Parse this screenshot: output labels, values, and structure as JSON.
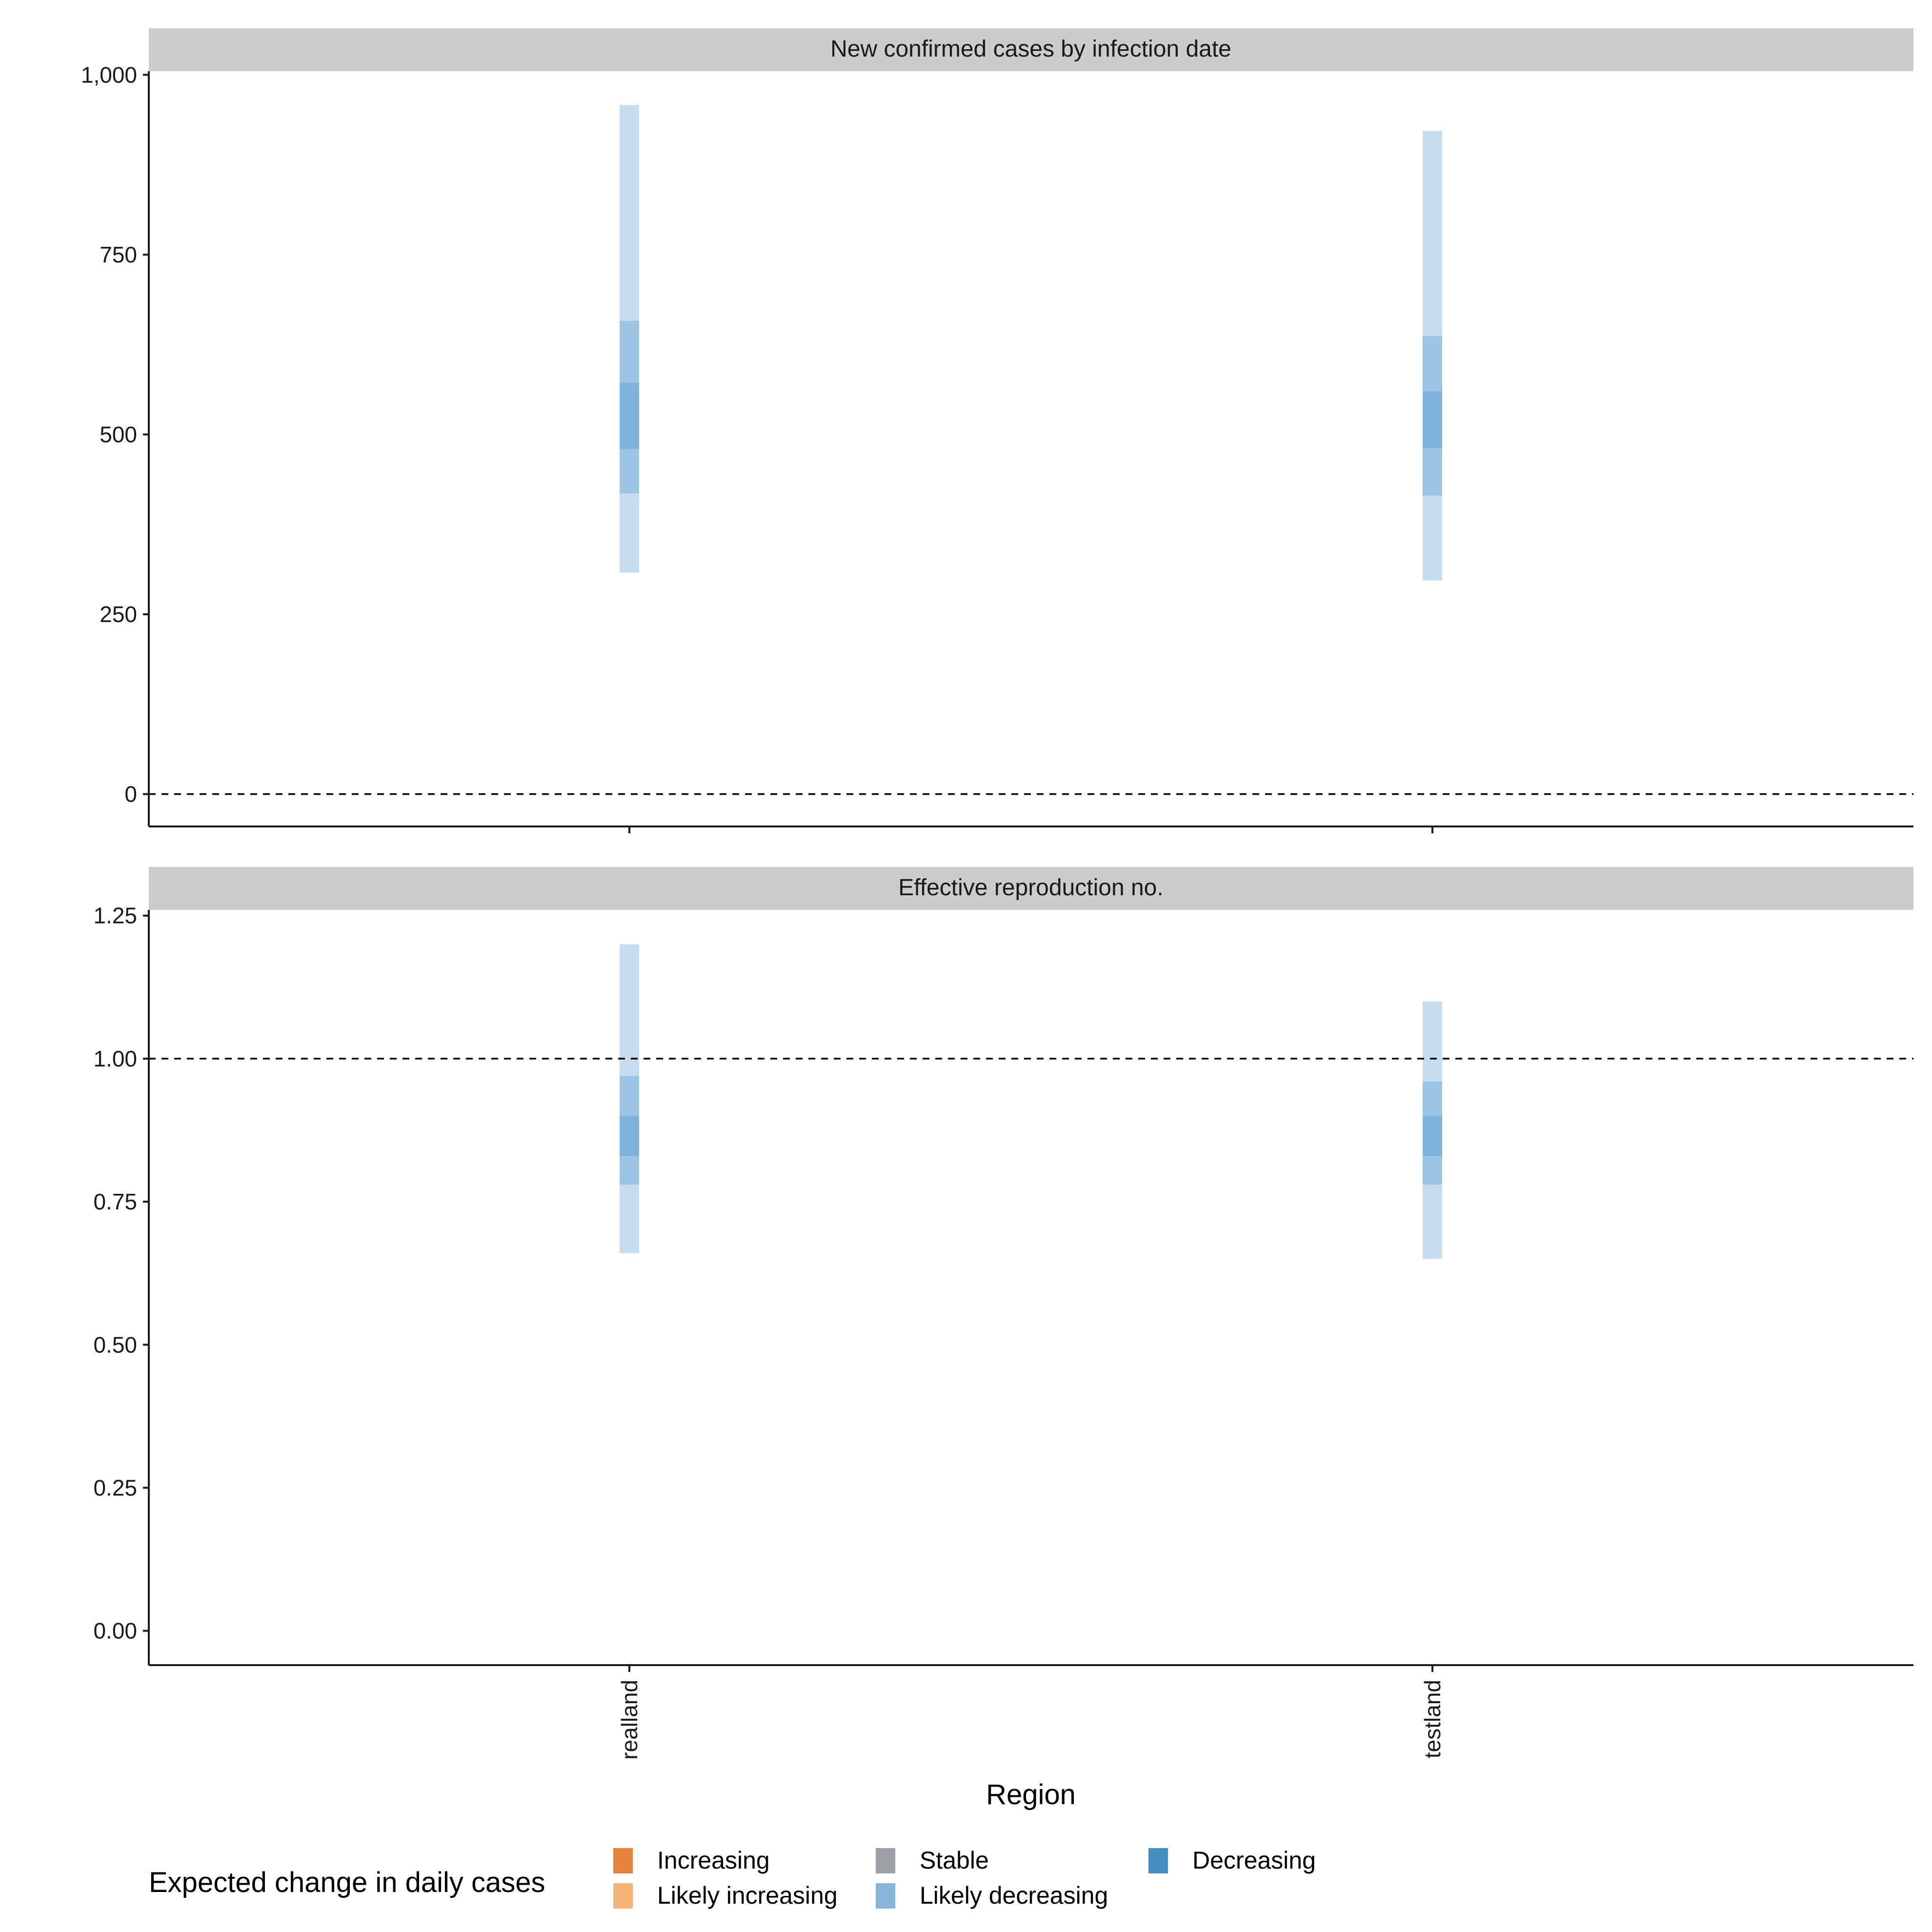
{
  "chart_data": [
    {
      "type": "range-interval",
      "title": "New confirmed cases by infection date",
      "xlabel": "Region",
      "ylabel": "",
      "categories": [
        "realland",
        "testland"
      ],
      "ylim": [
        -45,
        1005
      ],
      "yticks": [
        0,
        250,
        500,
        750,
        1000
      ],
      "ytick_labels": [
        "0",
        "250",
        "500",
        "750",
        "1,000"
      ],
      "reference_line": 0,
      "series": [
        {
          "region": "realland",
          "category": "Likely decreasing",
          "intervals": [
            [
              308,
              958
            ],
            [
              418,
              658
            ],
            [
              480,
              572
            ]
          ]
        },
        {
          "region": "testland",
          "category": "Likely decreasing",
          "intervals": [
            [
              297,
              922
            ],
            [
              415,
              637
            ],
            [
              481,
              560
            ]
          ]
        }
      ]
    },
    {
      "type": "range-interval",
      "title": "Effective reproduction no.",
      "xlabel": "Region",
      "ylabel": "",
      "categories": [
        "realland",
        "testland"
      ],
      "ylim": [
        -0.06,
        1.26
      ],
      "yticks": [
        0,
        0.25,
        0.5,
        0.75,
        1.0,
        1.25
      ],
      "ytick_labels": [
        "0.00",
        "0.25",
        "0.50",
        "0.75",
        "1.00",
        "1.25"
      ],
      "reference_line": 1.0,
      "series": [
        {
          "region": "realland",
          "category": "Likely decreasing",
          "intervals": [
            [
              0.66,
              1.2
            ],
            [
              0.78,
              0.97
            ],
            [
              0.83,
              0.9
            ]
          ]
        },
        {
          "region": "testland",
          "category": "Likely decreasing",
          "intervals": [
            [
              0.65,
              1.1
            ],
            [
              0.78,
              0.96
            ],
            [
              0.83,
              0.9
            ]
          ]
        }
      ]
    }
  ],
  "legend": {
    "title": "Expected change in daily cases",
    "items": [
      {
        "label": "Increasing",
        "color": "#e8823a"
      },
      {
        "label": "Likely increasing",
        "color": "#f5b478"
      },
      {
        "label": "Stable",
        "color": "#9aa0a6"
      },
      {
        "label": "Likely decreasing",
        "color": "#86b6d8"
      },
      {
        "label": "Decreasing",
        "color": "#4490c1"
      }
    ]
  },
  "colors": {
    "interval": "#3f8fc9",
    "strip": "#cccccc",
    "axis": "#1a1a1a"
  }
}
